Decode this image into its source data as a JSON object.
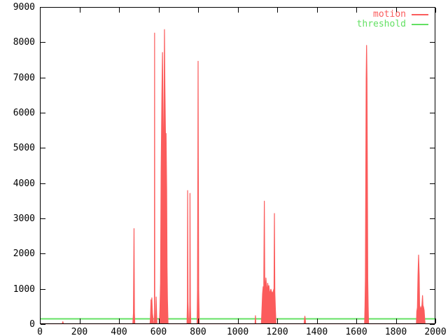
{
  "figure": {
    "background": "#ffffff",
    "border_color": "#000000",
    "text_color": "#000000"
  },
  "legend": {
    "position": "top-right",
    "items": [
      {
        "label": "motion",
        "color": "#fb5c5c"
      },
      {
        "label": "threshold",
        "color": "#63e063"
      }
    ]
  },
  "chart_data": {
    "type": "line",
    "title": "",
    "xlabel": "",
    "ylabel": "",
    "xlim": [
      0,
      2000
    ],
    "ylim": [
      0,
      9000
    ],
    "x_ticks": [
      0,
      200,
      400,
      600,
      800,
      1000,
      1200,
      1400,
      1600,
      1800,
      2000
    ],
    "y_ticks": [
      0,
      1000,
      2000,
      3000,
      4000,
      5000,
      6000,
      7000,
      8000,
      9000
    ],
    "grid": false,
    "legend_position": "top-right",
    "series": [
      {
        "name": "motion",
        "color": "#fb5c5c",
        "style": "filled-spikes",
        "points": [
          [
            0,
            0
          ],
          [
            113,
            0
          ],
          [
            116,
            60
          ],
          [
            119,
            0
          ],
          [
            470,
            0
          ],
          [
            473,
            300
          ],
          [
            476,
            2700
          ],
          [
            478,
            300
          ],
          [
            480,
            0
          ],
          [
            557,
            0
          ],
          [
            559,
            150
          ],
          [
            562,
            680
          ],
          [
            564,
            250
          ],
          [
            566,
            735
          ],
          [
            569,
            300
          ],
          [
            572,
            160
          ],
          [
            575,
            0
          ],
          [
            579,
            0
          ],
          [
            580,
            8250
          ],
          [
            581,
            0
          ],
          [
            584,
            0
          ],
          [
            586,
            300
          ],
          [
            588,
            760
          ],
          [
            590,
            300
          ],
          [
            592,
            0
          ],
          [
            604,
            0
          ],
          [
            607,
            420
          ],
          [
            610,
            1150
          ],
          [
            613,
            4300
          ],
          [
            617,
            6500
          ],
          [
            620,
            7700
          ],
          [
            624,
            5200
          ],
          [
            627,
            4650
          ],
          [
            630,
            8350
          ],
          [
            632,
            6800
          ],
          [
            635,
            5400
          ],
          [
            638,
            5400
          ],
          [
            641,
            3800
          ],
          [
            643,
            1600
          ],
          [
            645,
            700
          ],
          [
            648,
            0
          ],
          [
            744,
            0
          ],
          [
            746,
            620
          ],
          [
            747,
            3780
          ],
          [
            749,
            620
          ],
          [
            752,
            0
          ],
          [
            756,
            0
          ],
          [
            758,
            520
          ],
          [
            759,
            3700
          ],
          [
            761,
            520
          ],
          [
            763,
            0
          ],
          [
            795,
            0
          ],
          [
            797,
            950
          ],
          [
            799,
            4800
          ],
          [
            800,
            7450
          ],
          [
            801,
            4800
          ],
          [
            803,
            950
          ],
          [
            806,
            0
          ],
          [
            1088,
            0
          ],
          [
            1090,
            230
          ],
          [
            1092,
            0
          ],
          [
            1120,
            0
          ],
          [
            1123,
            420
          ],
          [
            1126,
            850
          ],
          [
            1129,
            1050
          ],
          [
            1132,
            1000
          ],
          [
            1135,
            3480
          ],
          [
            1137,
            1250
          ],
          [
            1140,
            950
          ],
          [
            1143,
            1300
          ],
          [
            1146,
            1050
          ],
          [
            1149,
            900
          ],
          [
            1152,
            1150
          ],
          [
            1155,
            980
          ],
          [
            1158,
            1080
          ],
          [
            1161,
            920
          ],
          [
            1164,
            860
          ],
          [
            1168,
            980
          ],
          [
            1172,
            900
          ],
          [
            1176,
            860
          ],
          [
            1180,
            920
          ],
          [
            1184,
            1000
          ],
          [
            1186,
            3130
          ],
          [
            1188,
            900
          ],
          [
            1191,
            400
          ],
          [
            1194,
            0
          ],
          [
            1336,
            0
          ],
          [
            1338,
            120
          ],
          [
            1340,
            215
          ],
          [
            1342,
            120
          ],
          [
            1344,
            0
          ],
          [
            1642,
            0
          ],
          [
            1644,
            500
          ],
          [
            1646,
            1270
          ],
          [
            1648,
            4260
          ],
          [
            1650,
            6970
          ],
          [
            1652,
            7900
          ],
          [
            1654,
            6970
          ],
          [
            1656,
            4260
          ],
          [
            1658,
            1270
          ],
          [
            1660,
            500
          ],
          [
            1662,
            0
          ],
          [
            1904,
            0
          ],
          [
            1906,
            350
          ],
          [
            1909,
            460
          ],
          [
            1912,
            1370
          ],
          [
            1915,
            1950
          ],
          [
            1918,
            1370
          ],
          [
            1920,
            520
          ],
          [
            1923,
            460
          ],
          [
            1926,
            420
          ],
          [
            1929,
            470
          ],
          [
            1932,
            520
          ],
          [
            1935,
            800
          ],
          [
            1937,
            520
          ],
          [
            1940,
            470
          ],
          [
            1943,
            380
          ],
          [
            1946,
            120
          ],
          [
            1948,
            0
          ],
          [
            2000,
            0
          ]
        ]
      },
      {
        "name": "threshold",
        "color": "#63e063",
        "style": "hline",
        "value": 150
      }
    ]
  }
}
